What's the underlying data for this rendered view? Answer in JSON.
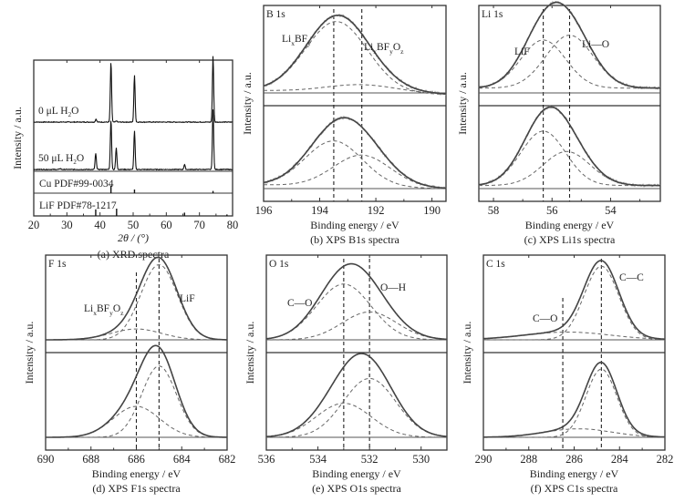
{
  "chart_data": [
    {
      "id": "a",
      "type": "line",
      "title": "(a) XRD spectra",
      "xlabel": "2θ / (°)",
      "ylabel": "Intensity / a.u.",
      "xlim": [
        20,
        80
      ],
      "xticks": [
        20,
        30,
        40,
        50,
        60,
        70,
        80
      ],
      "grid": false,
      "series": [
        {
          "name": "0 μL H2O",
          "label": "0 μL H",
          "label_sub": "2",
          "label_tail": "O",
          "peaks": [
            {
              "x": 38.8,
              "h": 0.05
            },
            {
              "x": 43.3,
              "h": 1.0
            },
            {
              "x": 44.9,
              "h": 0.02
            },
            {
              "x": 50.4,
              "h": 0.78
            },
            {
              "x": 74.1,
              "h": 1.1
            }
          ]
        },
        {
          "name": "50 μL H2O",
          "label": "50 μL H",
          "label_sub": "2",
          "label_tail": "O",
          "peaks": [
            {
              "x": 28.0,
              "h": 0.02
            },
            {
              "x": 38.7,
              "h": 0.32
            },
            {
              "x": 43.3,
              "h": 1.0
            },
            {
              "x": 44.9,
              "h": 0.43
            },
            {
              "x": 50.4,
              "h": 0.77
            },
            {
              "x": 65.5,
              "h": 0.1
            },
            {
              "x": 74.1,
              "h": 1.2
            }
          ]
        }
      ],
      "references": [
        {
          "name": "Cu PDF#99-0034",
          "lines": [
            {
              "x": 43.3,
              "h": 1.0
            },
            {
              "x": 50.4,
              "h": 0.5
            },
            {
              "x": 74.1,
              "h": 0.3
            }
          ]
        },
        {
          "name": "LiF PDF#78-1217",
          "lines": [
            {
              "x": 38.7,
              "h": 0.9
            },
            {
              "x": 45.0,
              "h": 1.0
            },
            {
              "x": 65.5,
              "h": 0.45
            },
            {
              "x": 78.3,
              "h": 0.2
            }
          ]
        }
      ]
    },
    {
      "id": "b",
      "type": "line",
      "title": "(b) XPS B1s spectra",
      "panel_label": "B 1s",
      "xlabel": "Binding energy / eV",
      "ylabel": "Intensity / a.u.",
      "xlim": [
        196,
        189.5
      ],
      "xticks": [
        196,
        194,
        192,
        190
      ],
      "reference_lines": [
        193.5,
        192.5
      ],
      "annotations": [
        {
          "text": "Li",
          "sub": [
            "x"
          ],
          "parts": [
            "Li",
            "x",
            "BF",
            "y"
          ]
        },
        {
          "text": "LiBFO",
          "parts": [
            "Li",
            "x",
            "BF",
            "y",
            "O",
            "z"
          ]
        }
      ],
      "subplots": [
        {
          "name": "top",
          "components": [
            {
              "center": 193.4,
              "height": 0.88,
              "fwhm": 2.6
            },
            {
              "center": 192.5,
              "height": 0.1,
              "fwhm": 3.0
            }
          ],
          "baseline": [
            0.03,
            -0.02
          ]
        },
        {
          "name": "bottom",
          "components": [
            {
              "center": 193.5,
              "height": 0.6,
              "fwhm": 2.4
            },
            {
              "center": 192.5,
              "height": 0.42,
              "fwhm": 2.4
            }
          ],
          "baseline": [
            0.05,
            0.0
          ]
        }
      ]
    },
    {
      "id": "c",
      "type": "line",
      "title": "(c) XPS Li1s spectra",
      "panel_label": "Li 1s",
      "xlabel": "Binding energy / eV",
      "ylabel": "Intensity / a.u.",
      "xlim": [
        58.5,
        52.3
      ],
      "xticks": [
        58,
        56,
        54
      ],
      "reference_lines": [
        56.3,
        55.4
      ],
      "annotations": [
        {
          "text": "LiF"
        },
        {
          "text": "Li—O"
        }
      ],
      "subplots": [
        {
          "name": "top",
          "components": [
            {
              "center": 56.3,
              "height": 0.6,
              "fwhm": 1.8
            },
            {
              "center": 55.4,
              "height": 0.66,
              "fwhm": 1.9
            }
          ],
          "baseline": [
            0.06,
            0.06
          ]
        },
        {
          "name": "bottom",
          "components": [
            {
              "center": 56.3,
              "height": 0.72,
              "fwhm": 1.8
            },
            {
              "center": 55.5,
              "height": 0.45,
              "fwhm": 1.9
            }
          ],
          "baseline": [
            0.04,
            0.04
          ]
        }
      ]
    },
    {
      "id": "d",
      "type": "line",
      "title": "(d) XPS F1s spectra",
      "panel_label": "F 1s",
      "xlabel": "Binding energy / eV",
      "ylabel": "Intensity / a.u.",
      "xlim": [
        690,
        682
      ],
      "xticks": [
        690,
        688,
        686,
        684,
        682
      ],
      "reference_lines": [
        686.0,
        685.0
      ],
      "annotations": [
        {
          "text": "LiBFO",
          "parts": [
            "Li",
            "x",
            "BF",
            "y",
            "O",
            "z"
          ]
        },
        {
          "text": "LiF"
        }
      ],
      "subplots": [
        {
          "name": "top",
          "components": [
            {
              "center": 685.0,
              "height": 0.97,
              "fwhm": 1.9
            },
            {
              "center": 686.0,
              "height": 0.14,
              "fwhm": 2.6
            }
          ],
          "baseline": [
            0.0,
            0.0
          ]
        },
        {
          "name": "bottom",
          "components": [
            {
              "center": 685.0,
              "height": 0.92,
              "fwhm": 1.8
            },
            {
              "center": 686.0,
              "height": 0.4,
              "fwhm": 2.4
            }
          ],
          "baseline": [
            0.0,
            0.0
          ]
        }
      ]
    },
    {
      "id": "e",
      "type": "line",
      "title": "(e) XPS O1s spectra",
      "panel_label": "O 1s",
      "xlabel": "Binding energy / eV",
      "ylabel": "Intensity / a.u.",
      "xlim": [
        536,
        529
      ],
      "xticks": [
        536,
        534,
        532,
        530
      ],
      "reference_lines": [
        533.0,
        532.0
      ],
      "annotations": [
        {
          "text": "C—O"
        },
        {
          "text": "O—H"
        }
      ],
      "subplots": [
        {
          "name": "top",
          "components": [
            {
              "center": 533.0,
              "height": 0.72,
              "fwhm": 2.5
            },
            {
              "center": 532.0,
              "height": 0.36,
              "fwhm": 2.5
            }
          ],
          "baseline": [
            0.0,
            0.0
          ]
        },
        {
          "name": "bottom",
          "components": [
            {
              "center": 533.0,
              "height": 0.44,
              "fwhm": 2.5
            },
            {
              "center": 532.0,
              "height": 0.76,
              "fwhm": 2.4
            }
          ],
          "baseline": [
            0.0,
            0.0
          ]
        }
      ]
    },
    {
      "id": "f",
      "type": "line",
      "title": "(f) XPS C1s spectra",
      "panel_label": "C 1s",
      "xlabel": "Binding energy / eV",
      "ylabel": "Intensity / a.u.",
      "xlim": [
        290,
        282
      ],
      "xticks": [
        290,
        288,
        286,
        284,
        282
      ],
      "reference_lines": [
        286.5,
        284.8
      ],
      "annotations": [
        {
          "text": "C—O"
        },
        {
          "text": "C—C"
        }
      ],
      "subplots": [
        {
          "name": "top",
          "components": [
            {
              "center": 284.8,
              "height": 0.95,
              "fwhm": 1.8
            },
            {
              "center": 286.3,
              "height": 0.1,
              "fwhm": 4.5
            }
          ],
          "baseline": [
            0.0,
            0.0
          ]
        },
        {
          "name": "bottom",
          "components": [
            {
              "center": 284.8,
              "height": 0.88,
              "fwhm": 1.6
            },
            {
              "center": 285.8,
              "height": 0.11,
              "fwhm": 3.5
            }
          ],
          "baseline": [
            0.0,
            0.0
          ]
        }
      ]
    }
  ]
}
